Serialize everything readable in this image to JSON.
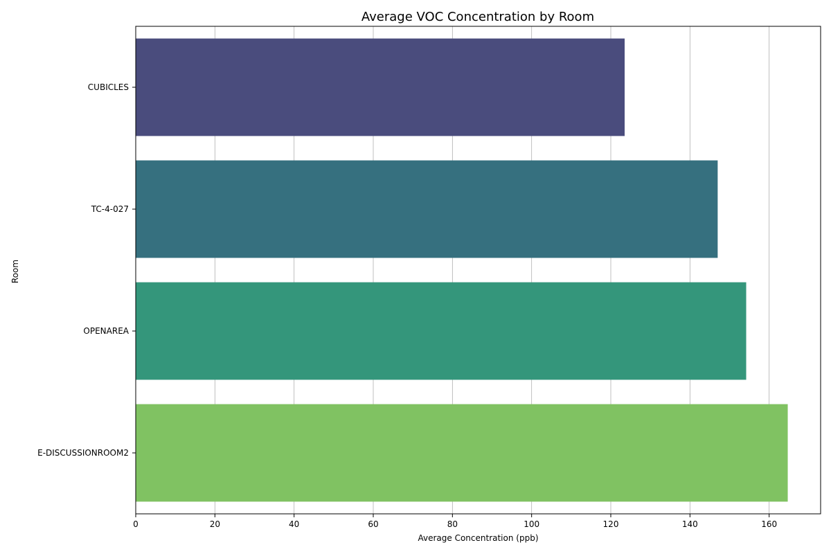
{
  "chart_data": {
    "type": "bar",
    "orientation": "horizontal",
    "title": "Average VOC Concentration by Room",
    "xlabel": "Average Concentration (ppb)",
    "ylabel": "Room",
    "categories": [
      "CUBICLES",
      "TC-4-027",
      "OPENAREA",
      "E-DISCUSSIONROOM2"
    ],
    "values": [
      123.5,
      147.0,
      154.2,
      164.7
    ],
    "colors": [
      "#4a4c7d",
      "#36707f",
      "#34967b",
      "#80c262"
    ],
    "xlim": [
      0,
      173
    ],
    "xticks": [
      0,
      20,
      40,
      60,
      80,
      100,
      120,
      140,
      160
    ],
    "grid": "x-only",
    "legend": "none"
  }
}
